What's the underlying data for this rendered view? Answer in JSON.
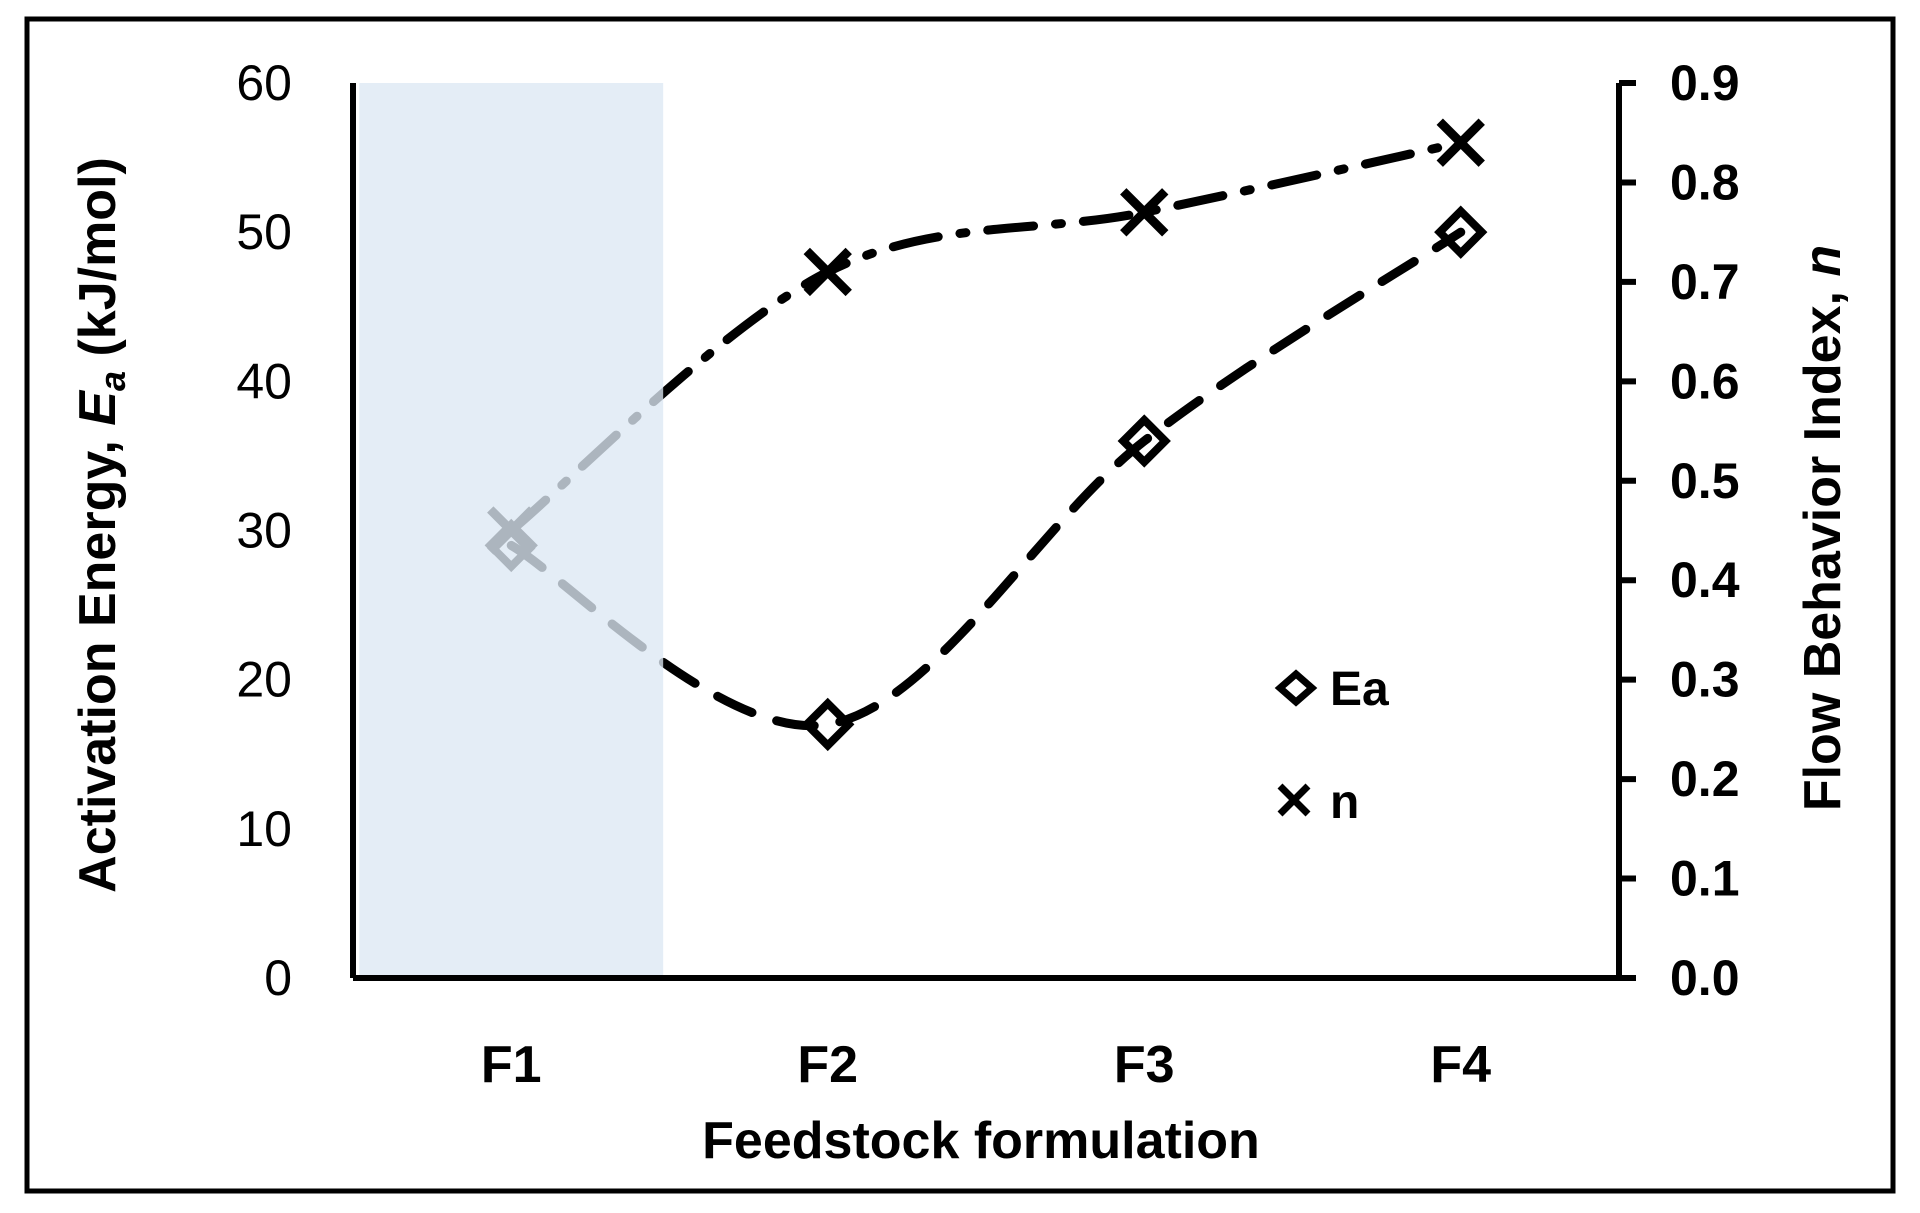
{
  "chart_data": {
    "type": "line",
    "categories": [
      "F1",
      "F2",
      "F3",
      "F4"
    ],
    "xlabel": "Feedstock formulation",
    "ylabel_left": {
      "prefix": "Activation Energy, ",
      "symbol": "E",
      "subscript": "a",
      "suffix": " (kJ/mol)"
    },
    "ylabel_right": {
      "prefix": "Flow Behavior Index, ",
      "symbol": "n"
    },
    "ylim_left": [
      0,
      60
    ],
    "ylim_right": [
      0,
      0.9
    ],
    "yticks_left": [
      "0",
      "10",
      "20",
      "30",
      "40",
      "50",
      "60"
    ],
    "yticks_right": [
      "0.0",
      "0.1",
      "0.2",
      "0.3",
      "0.4",
      "0.5",
      "0.6",
      "0.7",
      "0.8",
      "0.9"
    ],
    "series": [
      {
        "name": "Ea",
        "axis": "left",
        "marker": "diamond",
        "line": "dashed",
        "values": [
          29,
          17,
          36,
          50
        ]
      },
      {
        "name": "n",
        "axis": "right",
        "marker": "x",
        "line": "dash-dot",
        "values": [
          0.45,
          0.71,
          0.77,
          0.84
        ]
      }
    ],
    "highlight": {
      "category": "F1",
      "color": "#dde8f4"
    },
    "legend_position": "right",
    "grid": false
  }
}
